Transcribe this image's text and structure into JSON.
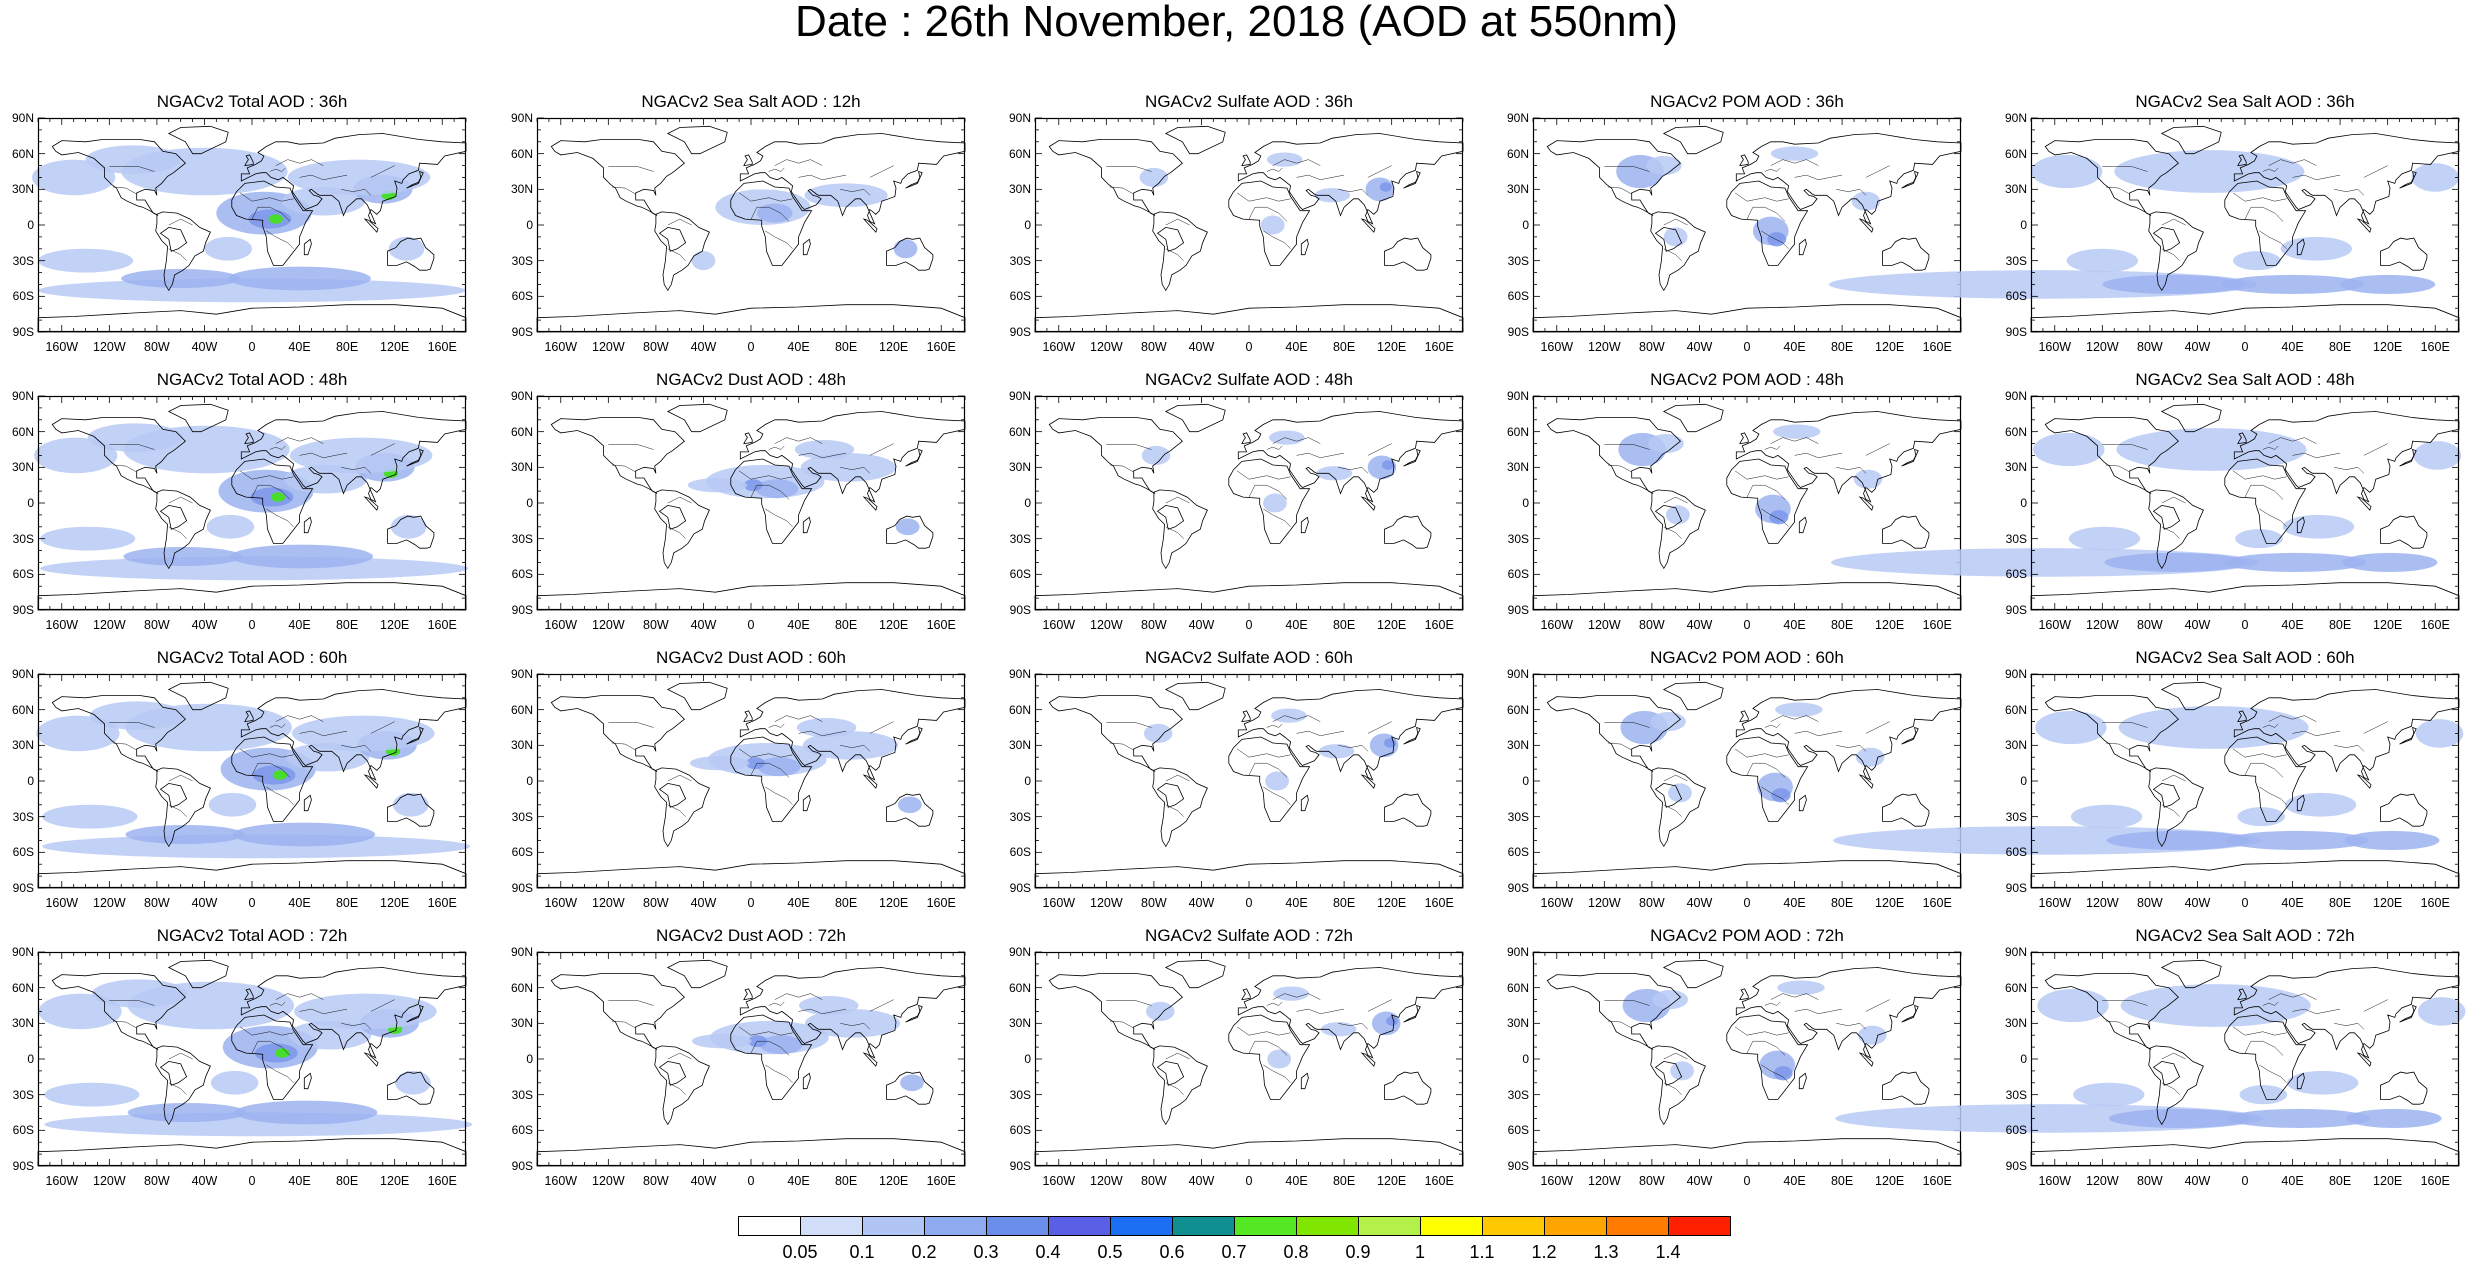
{
  "title": "Date : 26th November, 2018 (AOD at 550nm)",
  "panels": [
    [
      "NGACv2 Total AOD : 36h",
      "NGACv2 Sea Salt  AOD : 12h",
      "NGACv2 Sulfate AOD : 36h",
      "NGACv2 POM AOD : 36h",
      "NGACv2 Sea Salt AOD : 36h"
    ],
    [
      "NGACv2 Total AOD : 48h",
      "NGACv2 Dust AOD : 48h",
      "NGACv2 Sulfate AOD : 48h",
      "NGACv2 POM AOD : 48h",
      "NGACv2 Sea Salt AOD : 48h"
    ],
    [
      "NGACv2 Total AOD : 60h",
      "NGACv2 Dust AOD : 60h",
      "NGACv2 Sulfate AOD : 60h",
      "NGACv2 POM AOD : 60h",
      "NGACv2 Sea Salt AOD : 60h"
    ],
    [
      "NGACv2 Total AOD : 72h",
      "NGACv2 Dust AOD : 72h",
      "NGACv2 Sulfate AOD : 72h",
      "NGACv2 POM AOD : 72h",
      "NGACv2 Sea Salt  AOD : 72h"
    ]
  ],
  "lat_ticks": [
    "90N",
    "60N",
    "30N",
    "0",
    "30S",
    "60S",
    "90S"
  ],
  "lon_ticks": [
    "160W",
    "120W",
    "80W",
    "40W",
    "0",
    "40E",
    "80E",
    "120E",
    "160E"
  ],
  "colorbar": {
    "labels": [
      "0.05",
      "0.1",
      "0.2",
      "0.3",
      "0.4",
      "0.5",
      "0.6",
      "0.7",
      "0.8",
      "0.9",
      "1",
      "1.1",
      "1.2",
      "1.3",
      "1.4"
    ],
    "colors": [
      "#ffffff",
      "#d2ddf7",
      "#b1c5f4",
      "#8eabef",
      "#6a8eea",
      "#5a5fe6",
      "#1c6ff3",
      "#0f8f8f",
      "#55e624",
      "#80e600",
      "#b3f04a",
      "#ffff00",
      "#ffc800",
      "#ffa500",
      "#ff7b00",
      "#ff2000"
    ]
  },
  "colors": {
    "land_outline": "#000000",
    "aod_light": "#c8d6f5",
    "aod_medium": "#9fb6f0",
    "aod_strong": "#7393ea",
    "aod_peak": "#48dc2c"
  }
}
